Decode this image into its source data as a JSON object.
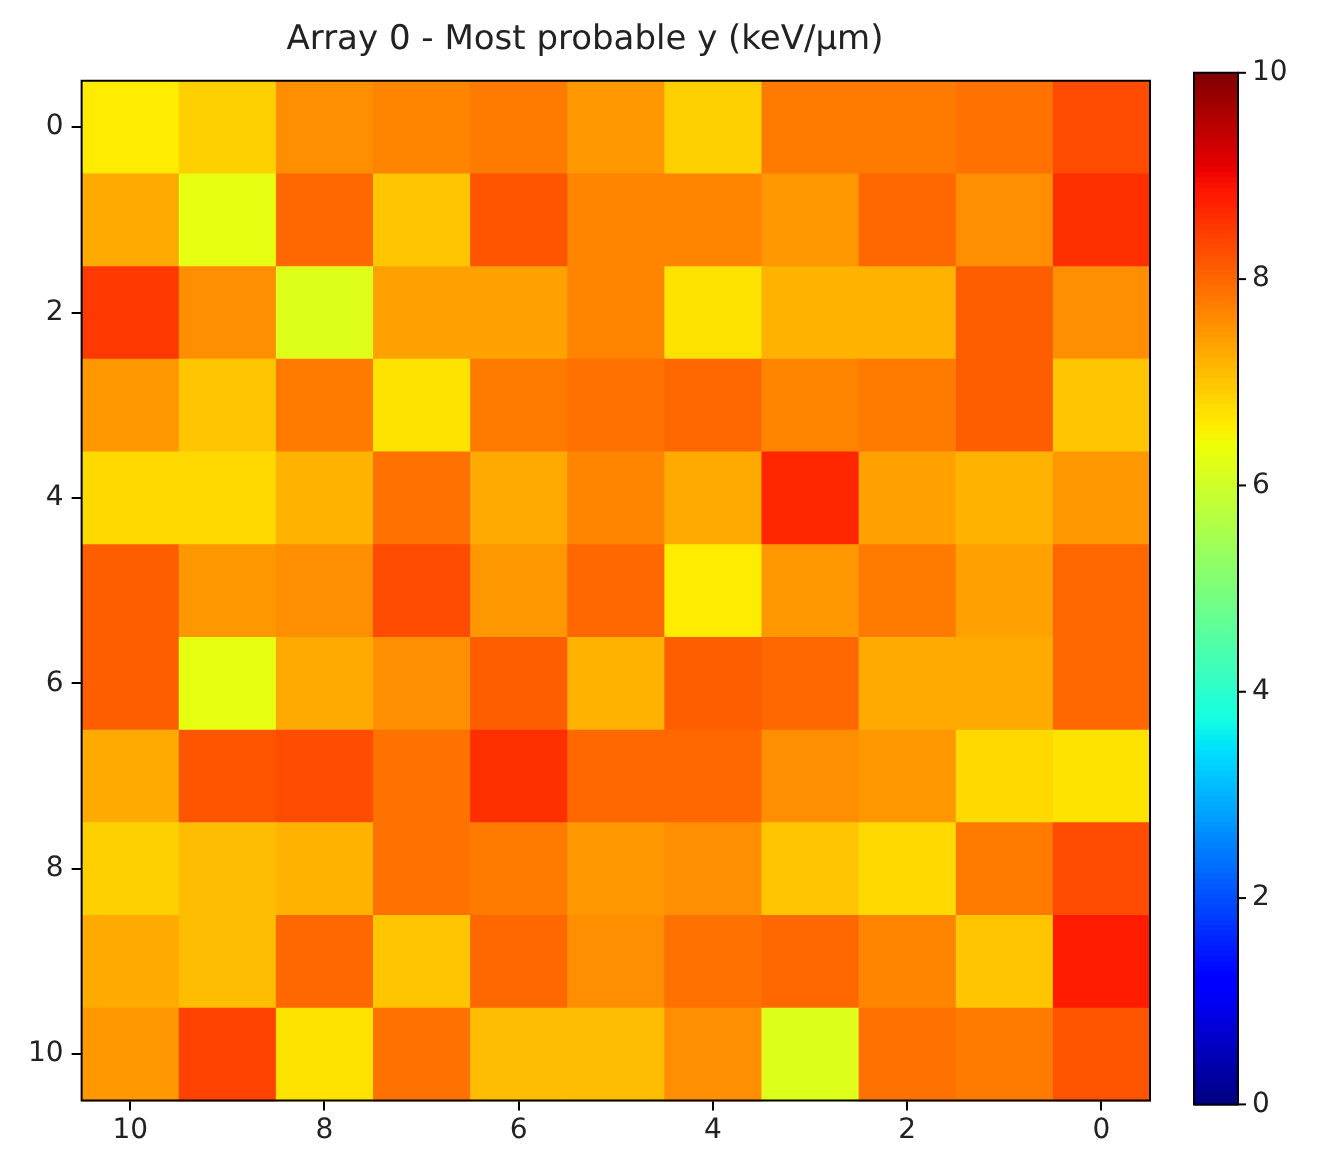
{
  "chart_data": {
    "type": "heatmap",
    "title": "Array 0 - Most probable y (keV/µm)",
    "categories": [
      "10",
      null,
      "8",
      null,
      "6",
      null,
      "4",
      null,
      "2",
      null,
      "0"
    ],
    "y_categories": [
      "0",
      null,
      "2",
      null,
      "4",
      null,
      "6",
      null,
      "8",
      null,
      "10"
    ],
    "cells": [
      [
        6.6,
        6.9,
        7.6,
        7.7,
        7.8,
        7.5,
        6.9,
        7.8,
        7.8,
        7.9,
        8.3
      ],
      [
        7.3,
        6.3,
        8.0,
        7.0,
        8.2,
        7.7,
        7.7,
        7.5,
        8.0,
        7.6,
        8.6
      ],
      [
        8.5,
        7.6,
        6.2,
        7.4,
        7.4,
        7.7,
        6.7,
        7.2,
        7.2,
        8.1,
        7.6
      ],
      [
        7.5,
        7.0,
        7.8,
        6.7,
        7.8,
        7.9,
        8.0,
        7.7,
        7.8,
        8.1,
        7.0
      ],
      [
        6.8,
        6.8,
        7.2,
        7.9,
        7.3,
        7.7,
        7.3,
        8.7,
        7.4,
        7.2,
        7.5
      ],
      [
        8.1,
        7.5,
        7.6,
        8.3,
        7.5,
        8.0,
        6.6,
        7.5,
        7.8,
        7.4,
        8.0
      ],
      [
        8.1,
        6.3,
        7.3,
        7.6,
        8.1,
        7.2,
        8.1,
        8.0,
        7.3,
        7.3,
        8.0
      ],
      [
        7.3,
        8.2,
        8.3,
        7.9,
        8.6,
        8.0,
        8.0,
        7.6,
        7.5,
        6.8,
        6.7
      ],
      [
        6.9,
        7.1,
        7.2,
        7.9,
        7.8,
        7.5,
        7.6,
        7.0,
        6.8,
        7.8,
        8.3
      ],
      [
        7.3,
        7.1,
        8.0,
        7.0,
        8.0,
        7.6,
        7.9,
        8.0,
        7.7,
        7.0,
        8.8
      ],
      [
        7.5,
        8.4,
        6.7,
        7.9,
        7.1,
        7.1,
        7.6,
        6.2,
        7.9,
        7.8,
        8.2
      ]
    ],
    "clim": [
      0,
      10
    ],
    "cticks": [
      0,
      2,
      4,
      6,
      8,
      10
    ]
  }
}
